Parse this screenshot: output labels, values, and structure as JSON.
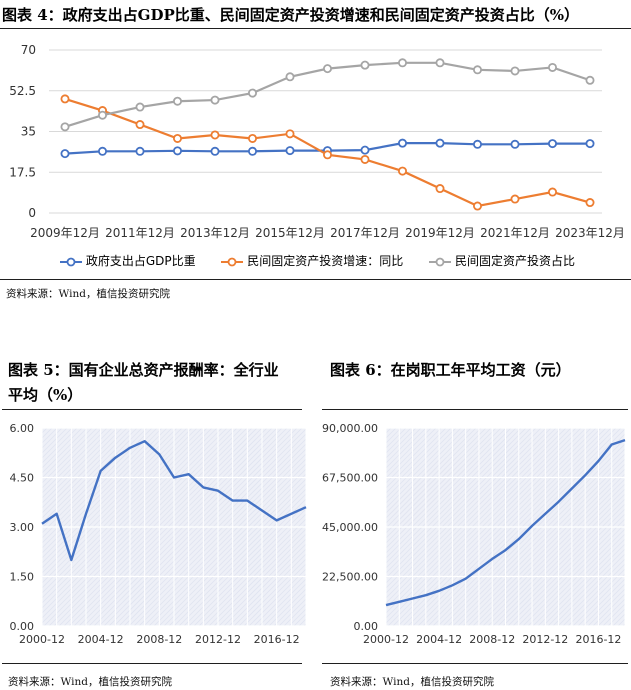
{
  "figure4": {
    "title": "图表 4：政府支出占GDP比重、民间固定资产投资增速和民间固定资产投资占比（%）",
    "source": "资料来源：Wind，植信投资研究院"
  },
  "figure5": {
    "title_line1": "图表  5：国有企业总资产报酬率：全行业",
    "title_line2": "平均（%）",
    "source": "资料来源：Wind，植信投资研究院"
  },
  "figure6": {
    "title": "图表 6：在岗职工年平均工资（元）",
    "source": "资料来源：Wind，植信投资研究院"
  },
  "chart_data": [
    {
      "id": "fig4",
      "type": "line",
      "ylim": [
        0,
        70
      ],
      "yticks": [
        "0",
        "17.5",
        "35",
        "52.5",
        "70"
      ],
      "ytick_values": [
        0,
        17.5,
        35,
        52.5,
        70
      ],
      "xticks": [
        "2009年12月",
        "2011年12月",
        "2013年12月",
        "2015年12月",
        "2017年12月",
        "2019年12月",
        "2021年12月",
        "2023年12月"
      ],
      "xtick_index": [
        0,
        2,
        4,
        6,
        8,
        10,
        12,
        14
      ],
      "x": [
        "2009年12月",
        "2010年12月",
        "2011年12月",
        "2012年12月",
        "2013年12月",
        "2014年12月",
        "2015年12月",
        "2016年12月",
        "2017年12月",
        "2018年12月",
        "2019年12月",
        "2020年12月",
        "2021年12月",
        "2022年12月",
        "2023年12月"
      ],
      "series": [
        {
          "name": "政府支出占GDP比重",
          "color": "#4472C4",
          "values": [
            25.5,
            26.5,
            26.5,
            26.7,
            26.5,
            26.5,
            26.8,
            26.8,
            27,
            30,
            30,
            29.5,
            29.5,
            29.8,
            29.8
          ]
        },
        {
          "name": "民间固定资产投资增速：同比",
          "color": "#ED7D31",
          "values": [
            49,
            44,
            38,
            32,
            33.5,
            32,
            34,
            25,
            23,
            18,
            10.5,
            3,
            6,
            9,
            4.5
          ]
        },
        {
          "name": "民间固定资产投资占比",
          "color": "#A5A5A5",
          "values": [
            37,
            42,
            45.5,
            48,
            48.5,
            51.5,
            58.5,
            62,
            63.5,
            64.5,
            64.5,
            61.5,
            61,
            62.5,
            57
          ]
        }
      ]
    },
    {
      "id": "fig5",
      "type": "line",
      "ylim": [
        0,
        6
      ],
      "yticks": [
        "0.00",
        "1.50",
        "3.00",
        "4.50",
        "6.00"
      ],
      "ytick_values": [
        0,
        1.5,
        3,
        4.5,
        6
      ],
      "x_start": 2000,
      "x_end": 2018,
      "xticks": [
        "2000-12",
        "2004-12",
        "2008-12",
        "2012-12",
        "2016-12"
      ],
      "xtick_years": [
        2000,
        2004,
        2008,
        2012,
        2016
      ],
      "series": [
        {
          "name": "国有企业总资产报酬率：全行业平均",
          "color": "#4472C4",
          "x": [
            2000,
            2001,
            2002,
            2003,
            2004,
            2005,
            2006,
            2007,
            2008,
            2009,
            2010,
            2011,
            2012,
            2013,
            2014,
            2016,
            2018
          ],
          "values": [
            3.1,
            3.4,
            2.0,
            3.4,
            4.7,
            5.1,
            5.4,
            5.6,
            5.2,
            4.5,
            4.6,
            4.2,
            4.1,
            3.8,
            3.8,
            3.2,
            3.6
          ]
        }
      ]
    },
    {
      "id": "fig6",
      "type": "line",
      "ylim": [
        0,
        90000
      ],
      "yticks": [
        "0.00",
        "22,500.00",
        "45,000.00",
        "67,500.00",
        "90,000.00"
      ],
      "ytick_values": [
        0,
        22500,
        45000,
        67500,
        90000
      ],
      "x_start": 2000,
      "x_end": 2018,
      "xticks": [
        "2000-12",
        "2004-12",
        "2008-12",
        "2012-12",
        "2016-12"
      ],
      "xtick_years": [
        2000,
        2004,
        2008,
        2012,
        2016
      ],
      "series": [
        {
          "name": "在岗职工年平均工资",
          "color": "#4472C4",
          "x": [
            2000,
            2001,
            2002,
            2003,
            2004,
            2005,
            2006,
            2007,
            2008,
            2009,
            2010,
            2011,
            2012,
            2013,
            2014,
            2015,
            2016,
            2017,
            2018
          ],
          "values": [
            9500,
            11000,
            12500,
            14000,
            16000,
            18500,
            21500,
            26000,
            30500,
            34500,
            39500,
            45500,
            51000,
            56500,
            62500,
            68500,
            75000,
            82500,
            84500
          ]
        }
      ]
    }
  ]
}
